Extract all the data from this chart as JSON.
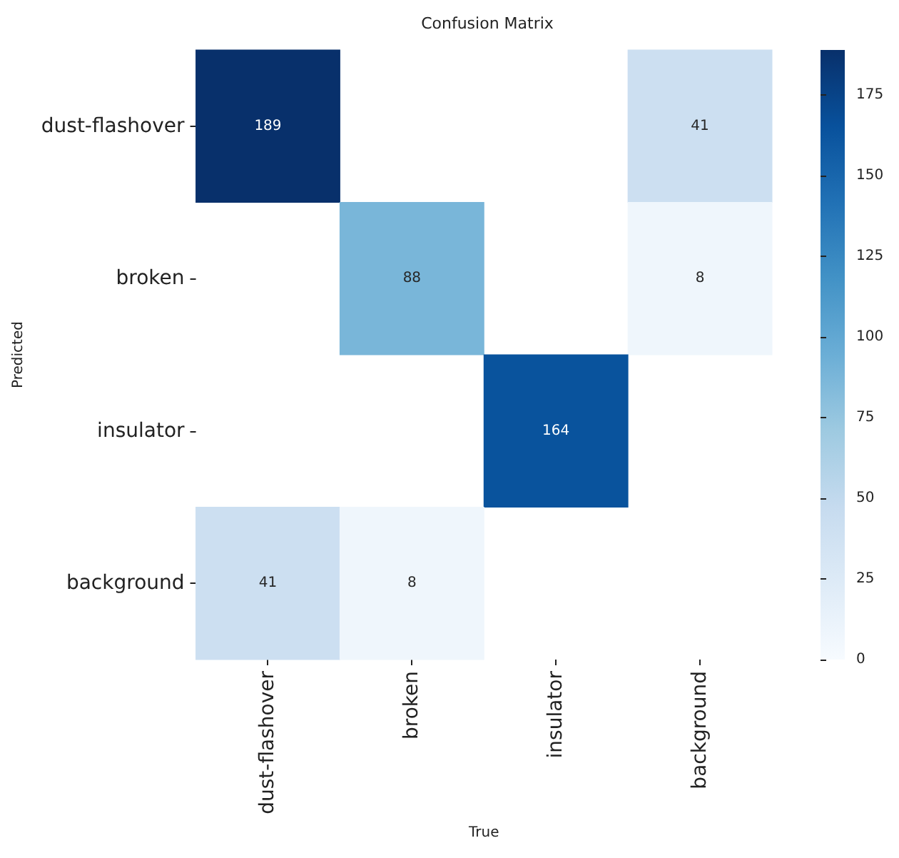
{
  "chart_data": {
    "type": "heatmap",
    "title": "Confusion Matrix",
    "xlabel": "True",
    "ylabel": "Predicted",
    "categories": [
      "dust-flashover",
      "broken",
      "insulator",
      "background"
    ],
    "y_categories": [
      "dust-flashover",
      "broken",
      "insulator",
      "background"
    ],
    "cells": [
      [
        189,
        null,
        null,
        41
      ],
      [
        null,
        88,
        null,
        8
      ],
      [
        null,
        null,
        164,
        null
      ],
      [
        41,
        8,
        null,
        null
      ]
    ],
    "data_labels": true,
    "clim": [
      0,
      189
    ],
    "cticks": [
      0,
      25,
      50,
      75,
      100,
      125,
      150,
      175
    ]
  }
}
